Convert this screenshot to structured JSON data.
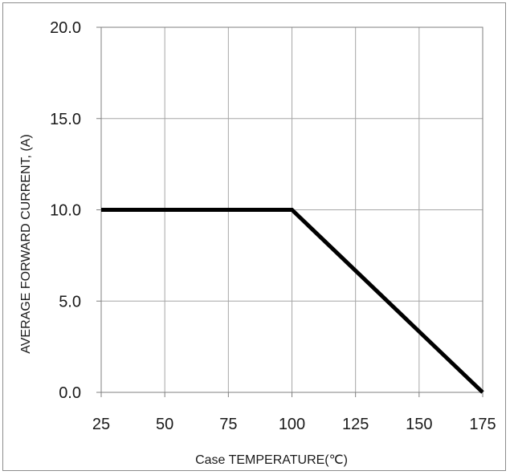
{
  "chart_data": {
    "type": "line",
    "title": "",
    "xlabel": "Case TEMPERATURE(℃)",
    "ylabel": "AVERAGE FORWARD CURRENT, (A)",
    "xlim": [
      25,
      175
    ],
    "ylim": [
      0,
      20
    ],
    "x_ticks": [
      "25",
      "50",
      "75",
      "100",
      "125",
      "150",
      "175"
    ],
    "y_ticks": [
      "0.0",
      "5.0",
      "10.0",
      "15.0",
      "20.0"
    ],
    "grid": true,
    "legend": "none",
    "series": [
      {
        "x": [
          25,
          100,
          175
        ],
        "y": [
          10,
          10,
          0
        ],
        "color": "#000000"
      }
    ]
  }
}
